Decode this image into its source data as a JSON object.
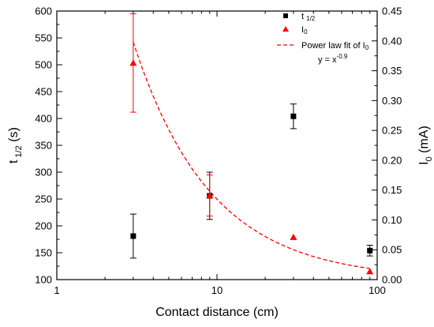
{
  "chart_data": {
    "type": "scatter",
    "x_axis": {
      "label": "Contact distance (cm)",
      "scale": "log",
      "range": [
        1,
        100
      ],
      "ticks": [
        1,
        10,
        100
      ],
      "tick_labels": [
        "1",
        "10",
        "100"
      ]
    },
    "y_axis_left": {
      "label_main": "t",
      "label_sub": "1/2",
      "label_unit": " (s)",
      "range": [
        100,
        600
      ],
      "ticks": [
        100,
        150,
        200,
        250,
        300,
        350,
        400,
        450,
        500,
        550,
        600
      ],
      "tick_labels": [
        "100",
        "150",
        "200",
        "250",
        "300",
        "350",
        "400",
        "450",
        "500",
        "550",
        "600"
      ]
    },
    "y_axis_right": {
      "label_main": "I",
      "label_sub": "0",
      "label_unit": " (mA)",
      "range": [
        0,
        0.45
      ],
      "ticks": [
        0,
        0.05,
        0.1,
        0.15,
        0.2,
        0.25,
        0.3,
        0.35,
        0.4,
        0.45
      ],
      "tick_labels": [
        "0.00",
        "0.05",
        "0.10",
        "0.15",
        "0.20",
        "0.25",
        "0.30",
        "0.35",
        "0.40",
        "0.45"
      ]
    },
    "series": [
      {
        "name_main": "t",
        "name_sub": "1/2",
        "axis": "left",
        "marker": "square",
        "color": "#000000",
        "x": [
          3,
          9,
          30,
          90
        ],
        "y": [
          181,
          256,
          404,
          154
        ],
        "err": [
          41,
          44,
          23,
          10
        ]
      },
      {
        "name_main": "I",
        "name_sub": "0",
        "axis": "right",
        "marker": "triangle",
        "color": "#ff0000",
        "x": [
          3,
          9,
          30,
          90
        ],
        "y": [
          0.363,
          0.141,
          0.071,
          0.0135
        ],
        "err": [
          0.0825,
          0.0345,
          0,
          0
        ]
      }
    ],
    "fit": {
      "name_text": "Power law fit of I",
      "name_sub": "0",
      "equation_text": "y = x",
      "equation_sup": "-0.9",
      "axis": "right",
      "color": "#ff0000",
      "style": "dashed",
      "coefficient": 1.07,
      "exponent": -0.9,
      "x_range": [
        3,
        90
      ]
    },
    "legend_position": "top-right",
    "grid": false
  }
}
